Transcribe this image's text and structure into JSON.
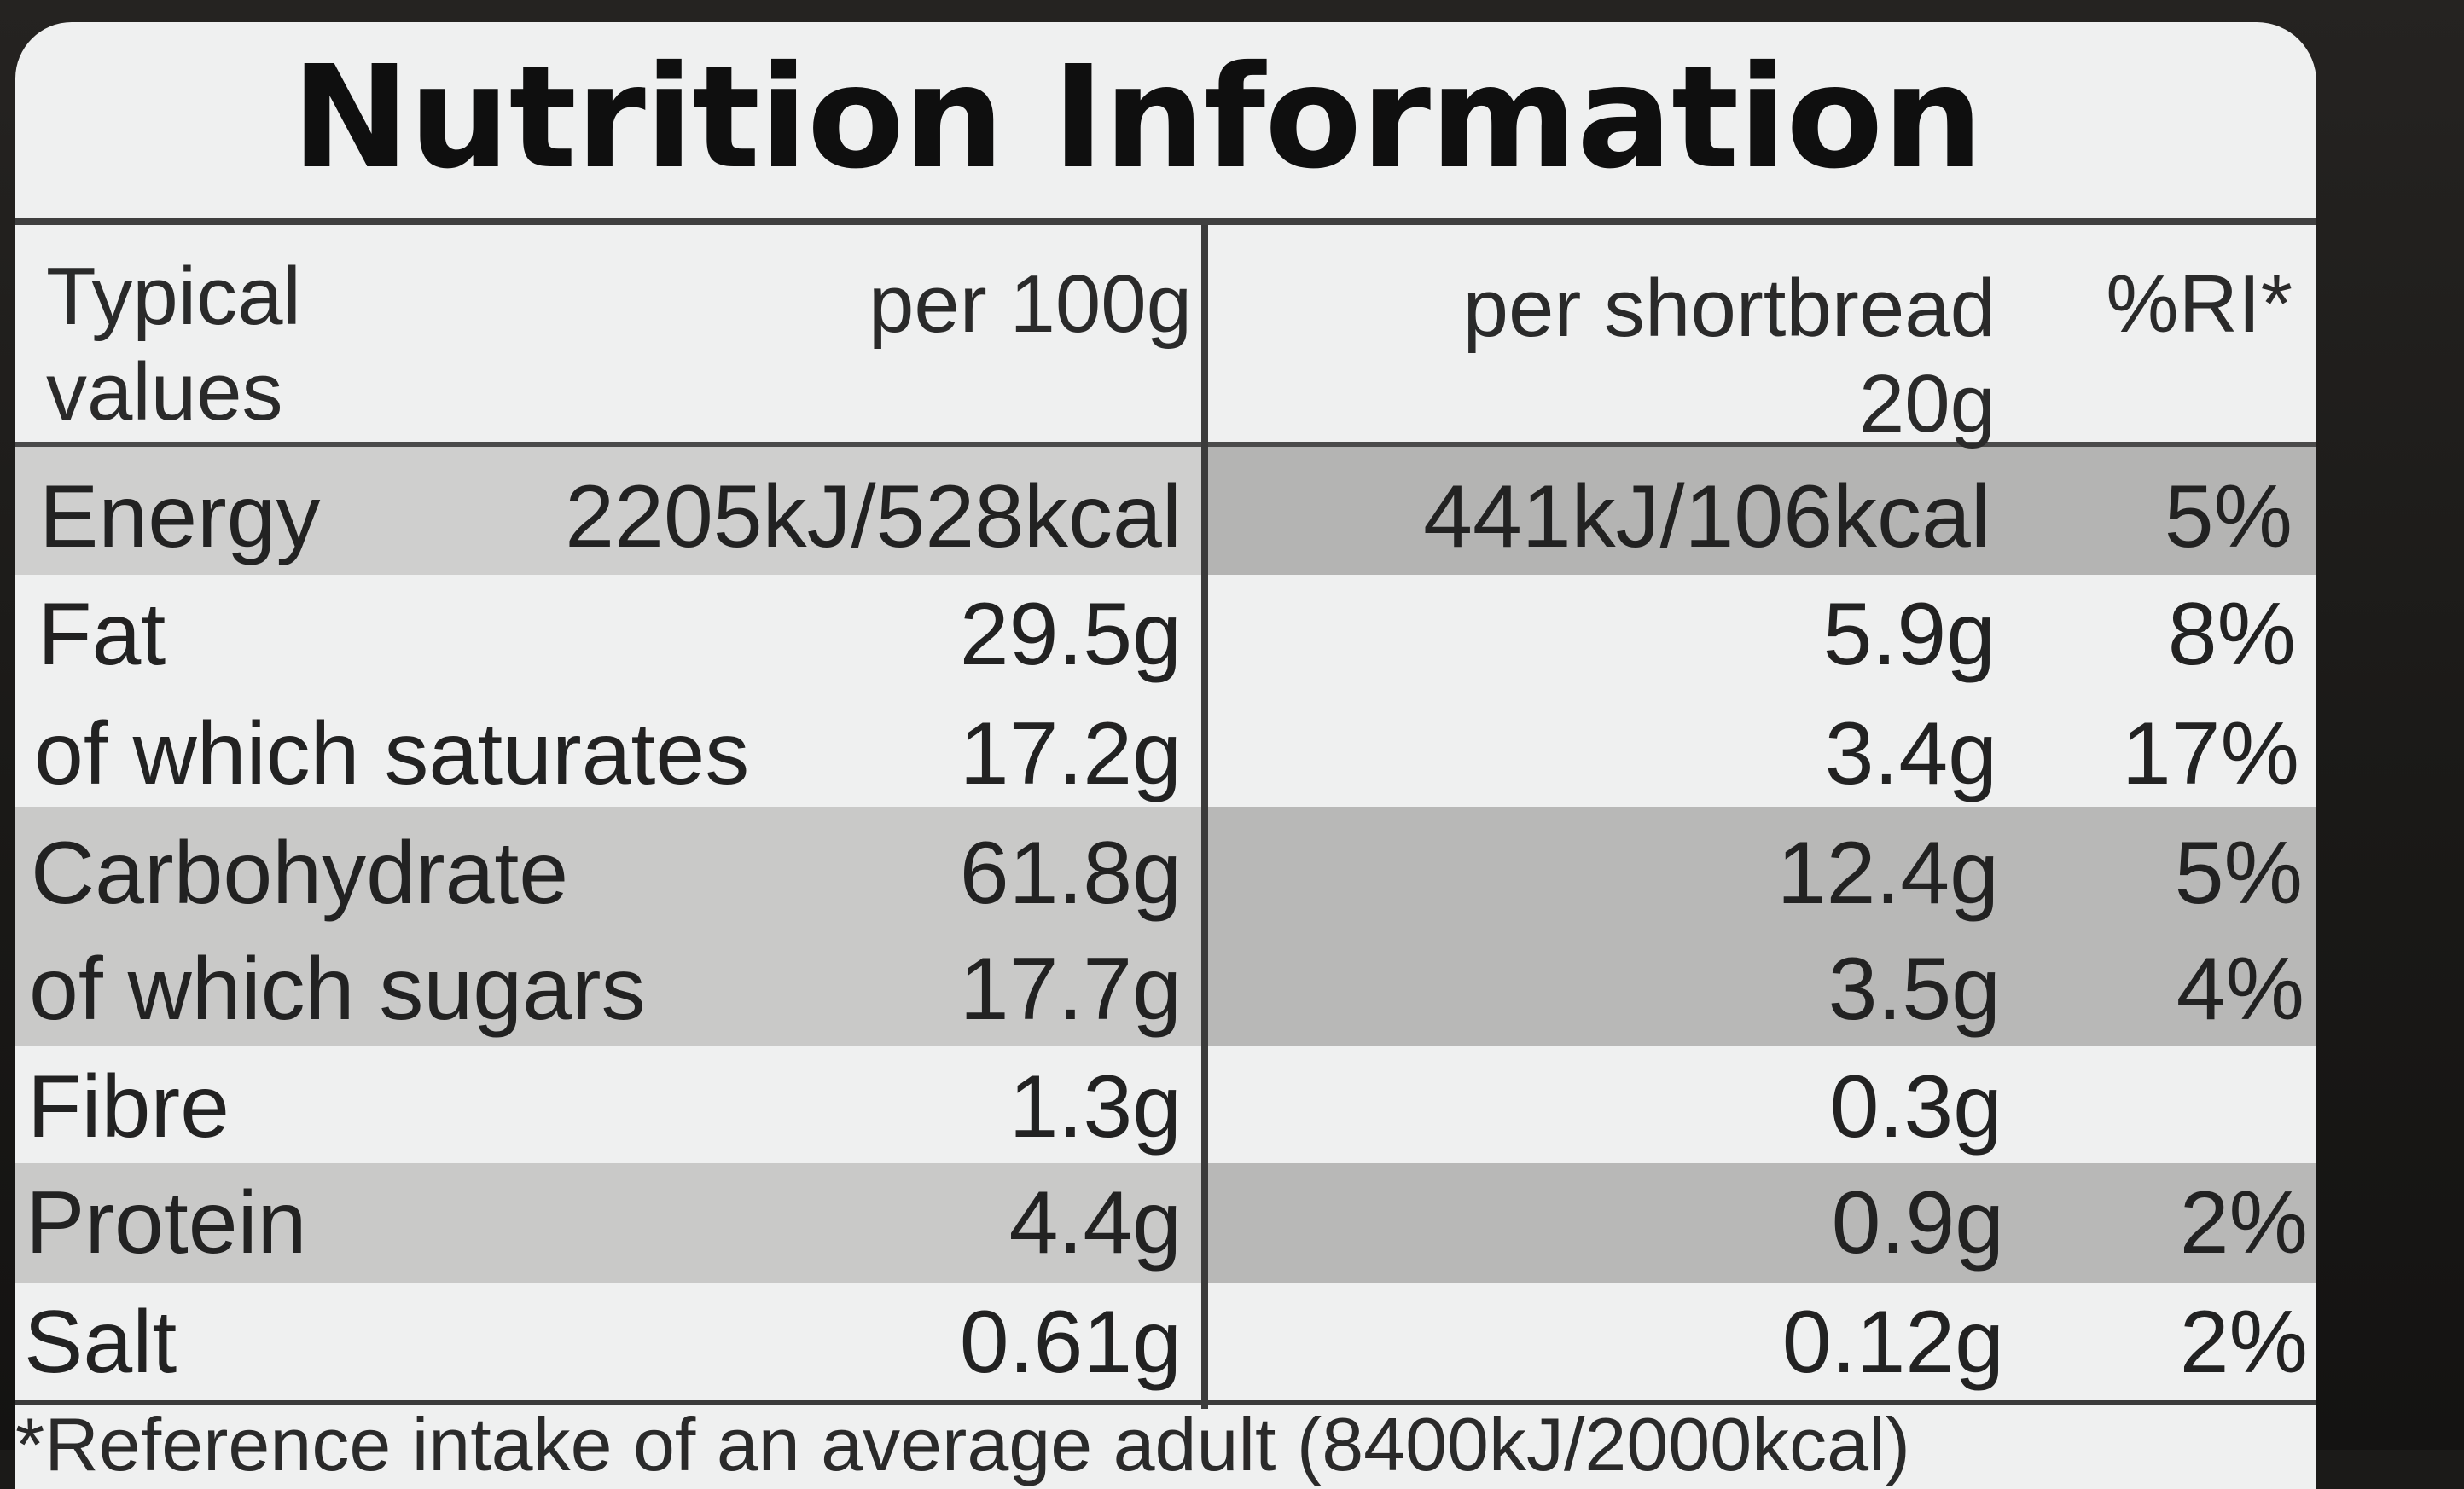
{
  "label": {
    "title": "Nutrition Information",
    "header": {
      "typical_line1": "Typical",
      "typical_line2": "values",
      "per_100g": "per 100g",
      "per_serving_line1": "per shortbread",
      "per_serving_line2": "20g",
      "ri": "%RI*"
    },
    "rows": [
      {
        "nutrient": "Energy",
        "per_100g": "2205kJ/528kcal",
        "per_serving": "441kJ/106kcal",
        "ri": "5%"
      },
      {
        "nutrient": "Fat",
        "per_100g": "29.5g",
        "per_serving": "5.9g",
        "ri": "8%"
      },
      {
        "nutrient": "of which saturates",
        "per_100g": "17.2g",
        "per_serving": "3.4g",
        "ri": "17%"
      },
      {
        "nutrient": "Carbohydrate",
        "per_100g": "61.8g",
        "per_serving": "12.4g",
        "ri": "5%"
      },
      {
        "nutrient": "of which sugars",
        "per_100g": "17.7g",
        "per_serving": "3.5g",
        "ri": "4%"
      },
      {
        "nutrient": "Fibre",
        "per_100g": "1.3g",
        "per_serving": "0.3g",
        "ri": ""
      },
      {
        "nutrient": "Protein",
        "per_100g": "4.4g",
        "per_serving": "0.9g",
        "ri": "2%"
      },
      {
        "nutrient": "Salt",
        "per_100g": "0.61g",
        "per_serving": "0.12g",
        "ri": "2%"
      }
    ],
    "footnote": "*Reference intake of an average adult (8400kJ/2000kcal)"
  },
  "colors": {
    "background": "#1b1a18",
    "label_paper": "#eff0f0",
    "shaded_band_left": "#cfcfce",
    "shaded_band_right": "#b4b4b3",
    "ink": "#1c1c1c"
  }
}
